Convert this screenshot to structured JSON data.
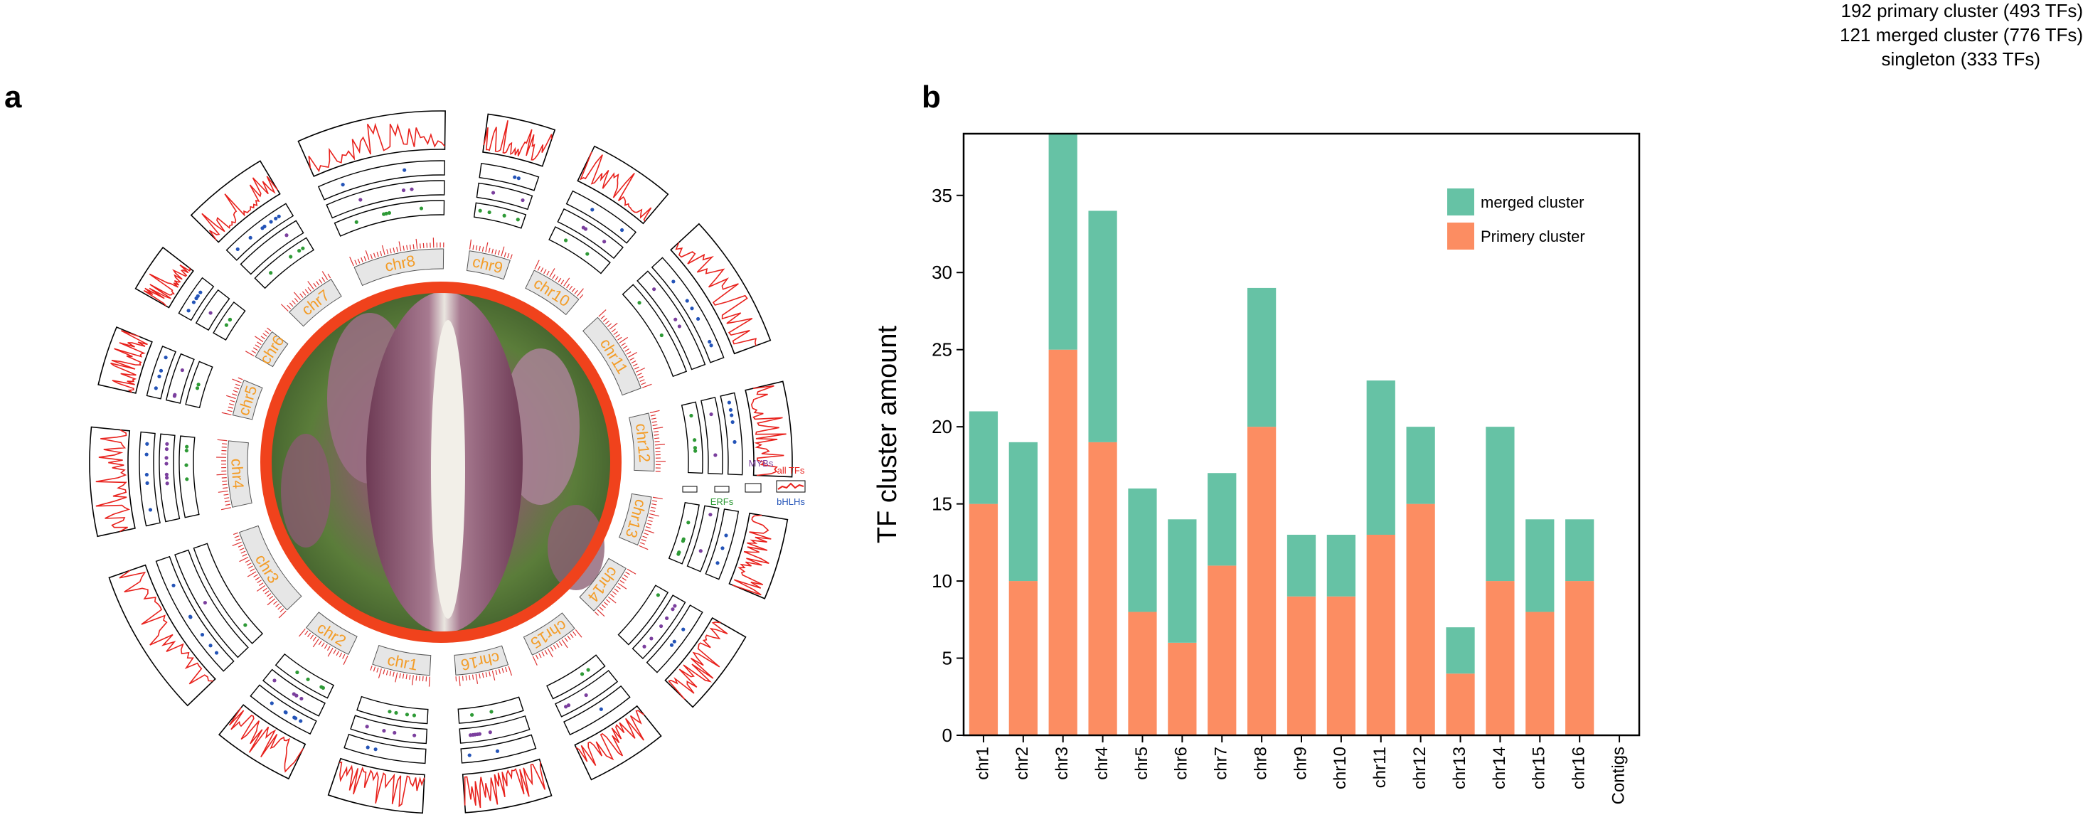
{
  "panels": {
    "a": "a",
    "b": "b"
  },
  "top_legend": [
    "192 primary cluster (493 TFs)",
    "121 merged cluster (776 TFs)",
    "singleton (333 TFs)"
  ],
  "circos": {
    "chromosomes": [
      "chr1",
      "chr2",
      "chr3",
      "chr4",
      "chr5",
      "chr6",
      "chr7",
      "chr8",
      "chr9",
      "chr10",
      "chr11",
      "chr12",
      "chr13",
      "chr14",
      "chr15",
      "chr16"
    ],
    "chrom_lengths": [
      35,
      30,
      55,
      40,
      22,
      18,
      32,
      55,
      25,
      32,
      50,
      35,
      30,
      32,
      30,
      32
    ],
    "track_labels": {
      "all": "all TFs",
      "myb": "MYBs",
      "erf": "ERFs",
      "bhlh": "bHLHs"
    },
    "colors": {
      "all": "#e8211c",
      "myb": "#7b3f9e",
      "erf": "#2e9a36",
      "bhlh": "#2454b8",
      "chrom_label": "#f39c27",
      "ring": "#f0421c",
      "ideogram": "#e6e6e6"
    }
  },
  "chart_data": {
    "type": "bar",
    "stacked": true,
    "categories": [
      "chr1",
      "chr2",
      "chr3",
      "chr4",
      "chr5",
      "chr6",
      "chr7",
      "chr8",
      "chr9",
      "chr10",
      "chr11",
      "chr12",
      "chr13",
      "chr14",
      "chr15",
      "chr16",
      "Contigs"
    ],
    "series": [
      {
        "name": "Primery cluster",
        "color": "#fc8d62",
        "values": [
          15,
          10,
          25,
          19,
          8,
          6,
          11,
          20,
          9,
          9,
          13,
          15,
          4,
          10,
          8,
          10,
          0
        ]
      },
      {
        "name": "merged cluster",
        "color": "#66c2a5",
        "values": [
          6,
          9,
          14,
          15,
          8,
          8,
          6,
          9,
          4,
          4,
          10,
          5,
          3,
          10,
          6,
          4,
          0
        ]
      }
    ],
    "legend": [
      "merged cluster",
      "Primery cluster"
    ],
    "legend_position": "top-right",
    "title": "",
    "xlabel": "",
    "ylabel": "TF cluster amount",
    "ylim": [
      0,
      39
    ],
    "yticks": [
      0,
      5,
      10,
      15,
      20,
      25,
      30,
      35
    ]
  }
}
